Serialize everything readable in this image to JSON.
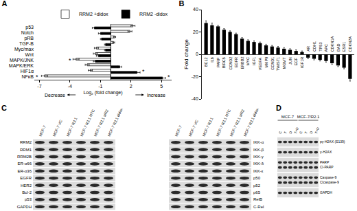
{
  "chart_data": [
    {
      "type": "bar",
      "title": "A",
      "orientation": "horizontal",
      "categories": [
        "p53",
        "Notch",
        "pRB",
        "TGF-B",
        "Myc/max",
        "Wnt",
        "MAPK/JNK",
        "MAPK/ERK",
        "HIF1α",
        "NFκB"
      ],
      "series": [
        {
          "name": "RRM2 +didox",
          "color": "#ffffff",
          "values": [
            2.2,
            1.9,
            0.4,
            0.3,
            -1.4,
            -1.5,
            -3.4,
            -2.3,
            -2.0,
            -6.5
          ],
          "errors": [
            0.2,
            0.2,
            0.1,
            0.1,
            0.2,
            0.2,
            0.3,
            0.2,
            0.2,
            0.3
          ]
        },
        {
          "name": "RRM2 -didox",
          "color": "#000000",
          "values": [
            -1.6,
            -1.0,
            -0.9,
            -0.5,
            -0.5,
            -1.2,
            -1.5,
            0.9,
            2.6,
            5.1
          ],
          "errors": [
            0.2,
            0.2,
            0.1,
            0.1,
            0.1,
            0.2,
            0.2,
            0.2,
            0.3,
            0.3
          ]
        }
      ],
      "xlim": [
        -7.5,
        6
      ],
      "xticks": [
        -7,
        -4,
        -1,
        2,
        5
      ],
      "x_label": "Log₂ (fold change)",
      "legend": "top right",
      "grid": false,
      "annotations": [
        {
          "text": "Decrease",
          "x": -5.5
        },
        {
          "text": "Increase",
          "x": 4.5
        },
        {
          "text": "*",
          "x": -4.0,
          "y": 6
        },
        {
          "text": "*",
          "x": 3.2,
          "y": 8
        },
        {
          "text": "*",
          "x": -7.2,
          "y": 9
        },
        {
          "text": "*",
          "x": 5.7,
          "y": 9
        }
      ]
    },
    {
      "type": "bar",
      "title": "B",
      "categories": [
        "BCL2",
        "IL6",
        "PARP",
        "BIRC5",
        "CCND2",
        "EGFR",
        "ERBB2",
        "MYC",
        "IGF1",
        "VEGFA",
        "MMP9",
        "CCND1",
        "TWIST1",
        "MGMT",
        "JUN",
        "EGF",
        "IGF1R",
        "AR",
        "CDH1",
        "TP53",
        "APC",
        "CDKN1A",
        "BAD",
        "ESR1",
        "CDKN2A"
      ],
      "values": [
        28,
        26,
        25,
        22,
        20,
        18,
        14,
        12,
        11,
        10,
        8,
        7,
        6,
        5,
        4,
        3,
        2,
        -3,
        -4,
        -5,
        -6,
        -8,
        -10,
        -12,
        -22
      ],
      "errors": [
        2,
        2,
        1,
        1,
        1,
        1,
        1,
        1,
        1,
        1,
        1,
        1,
        1,
        1,
        1,
        1,
        1,
        1,
        1,
        1,
        1,
        1,
        1,
        1,
        2
      ],
      "color": "#000000",
      "ylim": [
        -40,
        40
      ],
      "yticks": [
        -40,
        -20,
        0,
        20,
        40
      ],
      "y_label": "Fold change",
      "grid": false,
      "tick_labels": "y"
    }
  ],
  "blots": [
    {
      "title": "C",
      "columns": [
        "MCF-7",
        "MCF-7 VC",
        "MCF-7 R2.1",
        "MCF-7 R2.1 NTC",
        "MCF-7 R2.1 siR2",
        "MCF-7 R2.1 didox"
      ],
      "blocks": [
        {
          "rows": [
            "RRM2",
            "RRM1",
            "RRM2B",
            "ER-α66",
            "ER-α36",
            "EGFR",
            "HER2",
            "Bcl-2",
            "p53",
            "GAPDH"
          ]
        },
        {
          "rows": [
            "IKK-α",
            "IKK-β",
            "IKK-γ",
            "IKK-δ",
            "IKK-ε",
            "p50",
            "p52",
            "p65",
            "RelB",
            "C-Rel"
          ]
        }
      ]
    },
    {
      "title": "D",
      "groups": [
        {
          "name": "MCF-7",
          "columns": [
            "C",
            "T",
            "D",
            "T+D"
          ]
        },
        {
          "name": "MCF-7/R2.1",
          "columns": [
            "C",
            "T",
            "D",
            "T+D"
          ]
        }
      ],
      "rows": [
        {
          "labels": [
            "pγ-H2AX (S139)"
          ]
        },
        {
          "labels": [
            "γ-H2AX"
          ]
        },
        {
          "labels": [
            "PARP",
            "Cl-PARP"
          ]
        },
        {
          "labels": [
            "Caspase-9",
            "Clcaspase-9"
          ]
        },
        {
          "labels": [
            "GAPDH"
          ]
        }
      ]
    }
  ]
}
